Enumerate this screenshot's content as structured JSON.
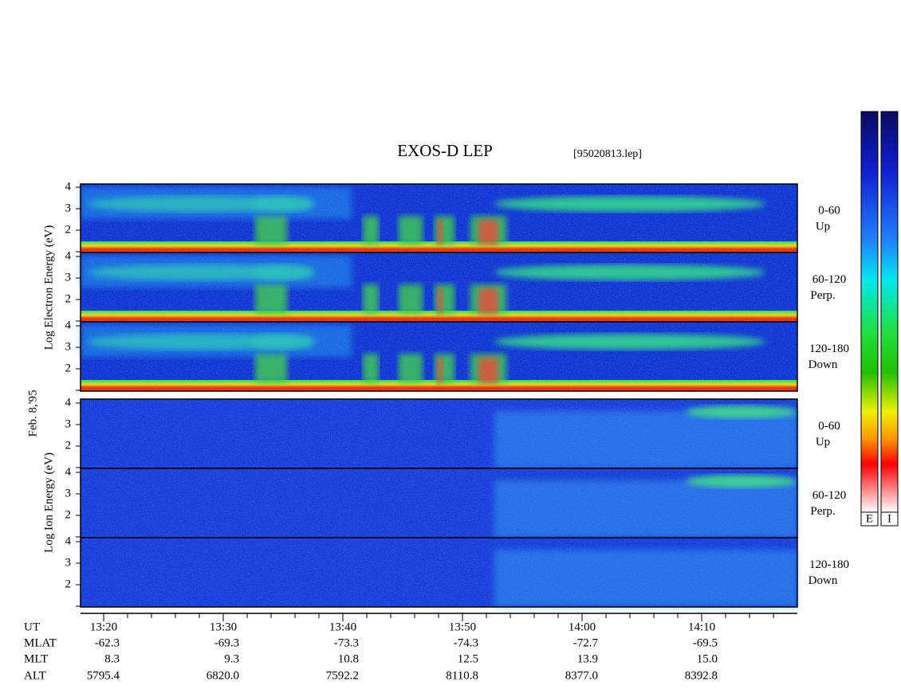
{
  "header": {
    "title": "EXOS-D LEP",
    "file": "[95020813.lep]"
  },
  "date": "Feb. 8,'95",
  "electron": {
    "axis_label": "Log  Electron  Energy (eV)"
  },
  "ion": {
    "axis_label": "Log  Ion  Energy (eV)"
  },
  "yticks": [
    2,
    3,
    4
  ],
  "channels": [
    {
      "angle": "0-60",
      "dir": "Up"
    },
    {
      "angle": "60-120",
      "dir": "Perp."
    },
    {
      "angle": "120-180",
      "dir": "Down"
    }
  ],
  "orbit": {
    "rows": [
      {
        "name": "UT",
        "values": [
          "13:20",
          "13:30",
          "13:40",
          "13:50",
          "14:00",
          "14:10"
        ]
      },
      {
        "name": "MLAT",
        "values": [
          "-62.3",
          "-69.3",
          "-73.3",
          "-74.3",
          "-72.7",
          "-69.5"
        ]
      },
      {
        "name": "MLT",
        "values": [
          "8.3",
          "9.3",
          "10.8",
          "12.5",
          "13.9",
          "15.0"
        ]
      },
      {
        "name": "ALT",
        "values": [
          "5795.4",
          "6820.0",
          "7592.2",
          "8110.8",
          "8377.0",
          "8392.8"
        ]
      }
    ]
  },
  "colorbar": [
    "E",
    "I"
  ]
}
